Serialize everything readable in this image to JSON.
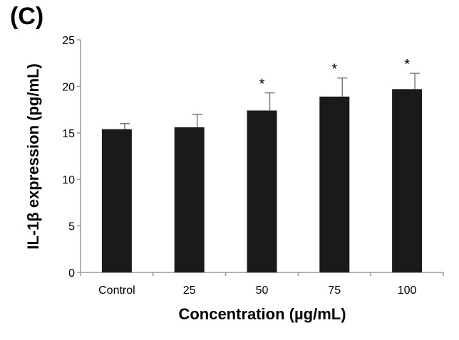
{
  "panel_label": "(C)",
  "chart_data": {
    "type": "bar",
    "title": "",
    "xlabel": "Concentration (µg/mL)",
    "ylabel": "IL-1β expression (pg/mL)",
    "categories": [
      "Control",
      "25",
      "50",
      "75",
      "100"
    ],
    "values": [
      15.4,
      15.6,
      17.4,
      18.9,
      19.7
    ],
    "errors": [
      0.6,
      1.4,
      1.9,
      2.0,
      1.7
    ],
    "annotations": [
      "",
      "",
      "*",
      "*",
      "*"
    ],
    "ylim": [
      0,
      25
    ],
    "yticks": [
      0,
      5,
      10,
      15,
      20,
      25
    ],
    "bar_color": "#1a1a1a",
    "grid": false,
    "legend": "none"
  }
}
